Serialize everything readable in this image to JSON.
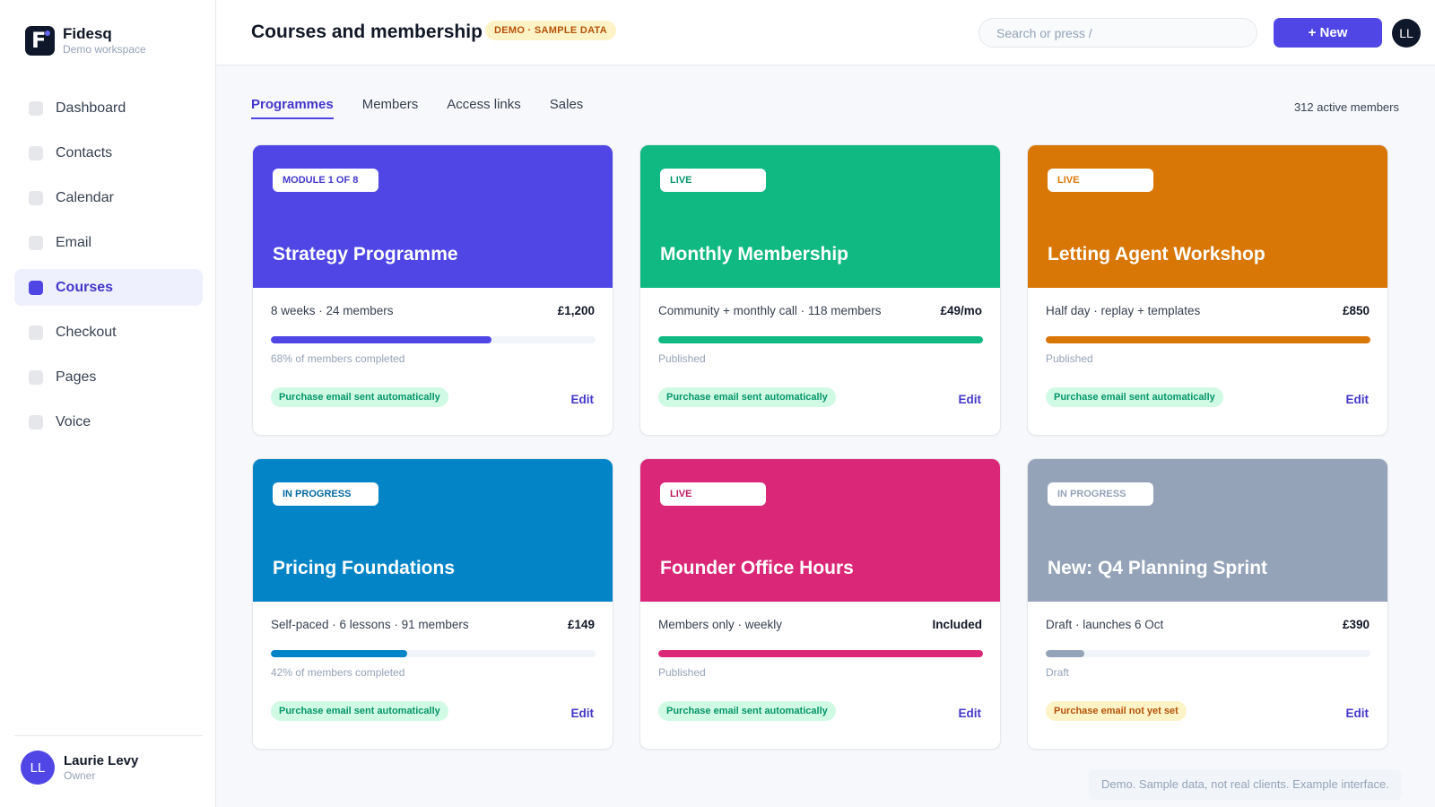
{
  "brand": {
    "name": "Fidesq",
    "subtitle": "Demo workspace",
    "logo_letter": "F"
  },
  "nav": [
    {
      "label": "Dashboard",
      "active": false
    },
    {
      "label": "Contacts",
      "active": false
    },
    {
      "label": "Calendar",
      "active": false
    },
    {
      "label": "Email",
      "active": false
    },
    {
      "label": "Courses",
      "active": true
    },
    {
      "label": "Checkout",
      "active": false
    },
    {
      "label": "Pages",
      "active": false
    },
    {
      "label": "Voice",
      "active": false
    }
  ],
  "user": {
    "initials": "LL",
    "name": "Laurie Levy",
    "role": "Owner"
  },
  "header": {
    "title": "Courses and membership",
    "badge": "DEMO · SAMPLE DATA",
    "search_placeholder": "Search or press /",
    "new_button": "+ New",
    "avatar_initials": "LL"
  },
  "tabs": [
    {
      "label": "Programmes",
      "active": true
    },
    {
      "label": "Members",
      "active": false
    },
    {
      "label": "Access links",
      "active": false
    },
    {
      "label": "Sales",
      "active": false
    }
  ],
  "active_members": "312 active members",
  "cards": [
    {
      "badge": "MODULE 1 OF 8",
      "title": "Strategy Programme",
      "meta": "8 weeks · 24 members",
      "price": "£1,200",
      "progress": 0.68,
      "status": "68% of members completed",
      "email_status": "Purchase email sent automatically",
      "email_ok": true,
      "edit": "Edit",
      "color": "#4f46e5",
      "badge_color": "#4338ca"
    },
    {
      "badge": "LIVE",
      "title": "Monthly Membership",
      "meta": "Community + monthly call · 118 members",
      "price": "£49/mo",
      "progress": 1.0,
      "status": "Published",
      "email_status": "Purchase email sent automatically",
      "email_ok": true,
      "edit": "Edit",
      "color": "#10b981",
      "badge_color": "#059669"
    },
    {
      "badge": "LIVE",
      "title": "Letting Agent Workshop",
      "meta": "Half day · replay + templates",
      "price": "£850",
      "progress": 1.0,
      "status": "Published",
      "email_status": "Purchase email sent automatically",
      "email_ok": true,
      "edit": "Edit",
      "color": "#d97706",
      "badge_color": "#d97706"
    },
    {
      "badge": "IN PROGRESS",
      "title": "Pricing Foundations",
      "meta": "Self-paced · 6 lessons · 91 members",
      "price": "£149",
      "progress": 0.42,
      "status": "42% of members completed",
      "email_status": "Purchase email sent automatically",
      "email_ok": true,
      "edit": "Edit",
      "color": "#0284c7",
      "badge_color": "#0369a1"
    },
    {
      "badge": "LIVE",
      "title": "Founder Office Hours",
      "meta": "Members only · weekly",
      "price": "Included",
      "progress": 1.0,
      "status": "Published",
      "email_status": "Purchase email sent automatically",
      "email_ok": true,
      "edit": "Edit",
      "color": "#db2777",
      "badge_color": "#be185d"
    },
    {
      "badge": "IN PROGRESS",
      "title": "New: Q4 Planning Sprint",
      "meta": "Draft · launches 6 Oct",
      "price": "£390",
      "progress": 0.12,
      "status": "Draft",
      "email_status": "Purchase email not yet set",
      "email_ok": false,
      "edit": "Edit",
      "color": "#94a3b8",
      "badge_color": "#94a3b8"
    }
  ],
  "footer_note": "Demo. Sample data, not real clients. Example interface."
}
